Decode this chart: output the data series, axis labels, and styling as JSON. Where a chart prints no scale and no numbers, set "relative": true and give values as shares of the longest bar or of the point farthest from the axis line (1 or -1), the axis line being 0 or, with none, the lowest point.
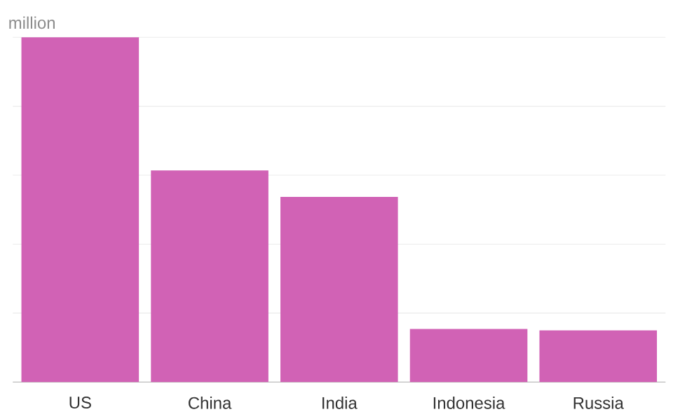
{
  "chart_data": {
    "type": "bar",
    "ylabel": "million",
    "categories": [
      "US",
      "China",
      "India",
      "Indonesia",
      "Russia"
    ],
    "values": [
      1,
      0.614,
      0.537,
      0.154,
      0.15
    ],
    "color": "#d162b5",
    "relative": true,
    "grid": "y"
  }
}
